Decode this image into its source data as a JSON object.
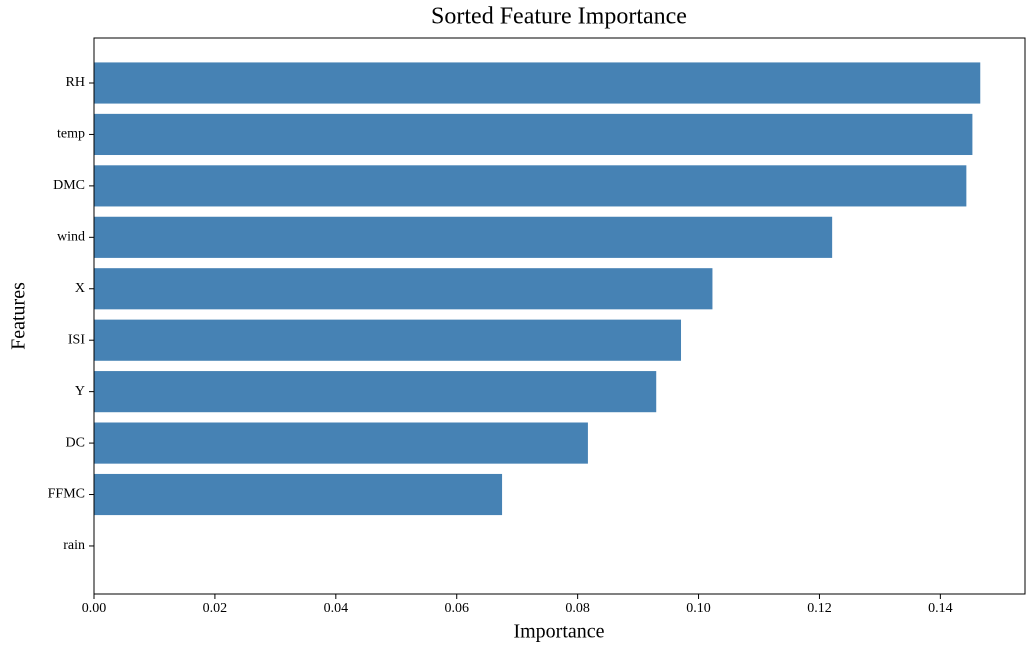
{
  "chart_data": {
    "type": "barh",
    "title": "Sorted Feature Importance",
    "x_label": "Importance",
    "y_label": "Features",
    "categories": [
      "RH",
      "temp",
      "DMC",
      "wind",
      "X",
      "ISI",
      "Y",
      "DC",
      "FFMC",
      "rain"
    ],
    "values": [
      0.1466,
      0.1453,
      0.1443,
      0.1221,
      0.1023,
      0.0971,
      0.093,
      0.0817,
      0.0675,
      0
    ],
    "color": "#4682b4",
    "xlim": [
      0,
      0.154
    ],
    "xticks": [
      {
        "value": 0,
        "label": "0.00"
      },
      {
        "value": 0.02,
        "label": "0.02"
      },
      {
        "value": 0.04,
        "label": "0.04"
      },
      {
        "value": 0.06,
        "label": "0.06"
      },
      {
        "value": 0.08,
        "label": "0.08"
      },
      {
        "value": 0.1,
        "label": "0.10"
      },
      {
        "value": 0.12,
        "label": "0.12"
      },
      {
        "value": 0.14,
        "label": "0.14"
      }
    ],
    "grid": false
  }
}
